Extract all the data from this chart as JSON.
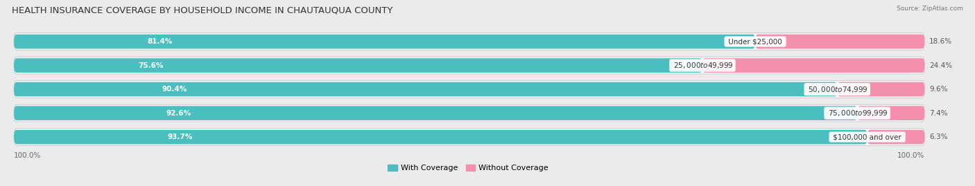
{
  "title": "HEALTH INSURANCE COVERAGE BY HOUSEHOLD INCOME IN CHAUTAUQUA COUNTY",
  "source": "Source: ZipAtlas.com",
  "categories": [
    "Under $25,000",
    "$25,000 to $49,999",
    "$50,000 to $74,999",
    "$75,000 to $99,999",
    "$100,000 and over"
  ],
  "with_coverage": [
    81.4,
    75.6,
    90.4,
    92.6,
    93.7
  ],
  "without_coverage": [
    18.6,
    24.4,
    9.6,
    7.4,
    6.3
  ],
  "color_with": "#4BBFBF",
  "color_without": "#F48FB0",
  "color_without_2": "#F06292",
  "bg_color": "#ebebeb",
  "row_bg_color": "#f8f8f8",
  "title_fontsize": 9.5,
  "label_fontsize": 7.5,
  "tick_fontsize": 7.5,
  "legend_fontsize": 8,
  "axis_label_left": "100.0%",
  "axis_label_right": "100.0%"
}
